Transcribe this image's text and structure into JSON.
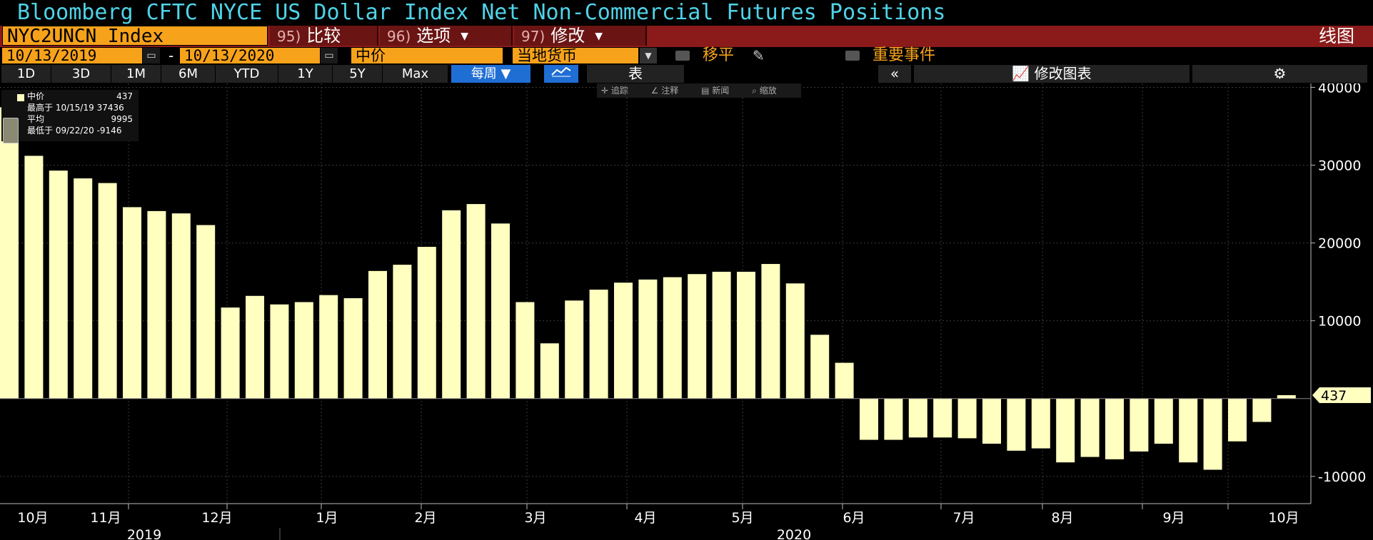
{
  "title": "Bloomberg CFTC NYCE US Dollar Index Net Non-Commercial Futures Positions",
  "ticker": "NYC2UNCN Index",
  "menu": [
    {
      "num": "95)",
      "label": "比较",
      "caret": "▼"
    },
    {
      "num": "96)",
      "label": "选项",
      "caret": "▼"
    },
    {
      "num": "97)",
      "label": "修改",
      "caret": "▼"
    }
  ],
  "view_label": "线图",
  "date_start": "10/13/2019",
  "date_sep": "-",
  "date_end": "10/13/2020",
  "price_field": "中价",
  "currency_field": "当地货币",
  "checkbox_shift": "移平",
  "checkbox_events": "重要事件",
  "periods": [
    "1D",
    "3D",
    "1M",
    "6M",
    "YTD",
    "1Y",
    "5Y",
    "Max"
  ],
  "frequency": "每周",
  "table_label": "表",
  "collapse_label": "«",
  "edit_chart_label": "修改图表",
  "mini_toolbar": [
    "追踪",
    "注释",
    "新闻",
    "缩放"
  ],
  "legend": {
    "series_label": "中价",
    "series_value": "437",
    "high_label": "最高于",
    "high_date": "10/15/19",
    "high_value": "37436",
    "avg_label": "平均",
    "avg_value": "9995",
    "low_label": "最低于",
    "low_date": "09/22/20",
    "low_value": "-9146"
  },
  "colors": {
    "bar": "#ffffc0",
    "title": "#4fd3e8",
    "ticker_bg": "#f7a21b",
    "menu_bar": "#8b1a1a",
    "active_btn": "#1f6ed4"
  },
  "chart_data": {
    "type": "bar",
    "title": "Bloomberg CFTC NYCE US Dollar Index Net Non-Commercial Futures Positions",
    "ylim": [
      -13500,
      40500
    ],
    "y_ticks": [
      40000,
      30000,
      20000,
      10000,
      -10000
    ],
    "y_tick_labels": [
      "40000",
      "30000",
      "20000",
      "10000",
      "-10000"
    ],
    "last_value_label": "437",
    "grid": true,
    "month_labels": [
      "10月",
      "11月",
      "12月",
      "1月",
      "2月",
      "3月",
      "4月",
      "5月",
      "6月",
      "7月",
      "8月",
      "9月",
      "10月"
    ],
    "year_labels": [
      "2019",
      "2020"
    ],
    "series": [
      {
        "values": [
          37436,
          31200,
          29300,
          28300,
          27700,
          24600,
          24100,
          23800,
          22300,
          11700,
          13200,
          12100,
          12400,
          13300,
          12900,
          16400,
          17200,
          19500,
          24200,
          25000,
          22500,
          12400,
          7100,
          12600,
          14000,
          14900,
          15300,
          15600,
          16000,
          16300,
          16300,
          17300,
          14800,
          8200,
          4600,
          -5300,
          -5300,
          -5000,
          -5000,
          -5100,
          -5800,
          -6700,
          -6400,
          -8200,
          -7500,
          -7800,
          -6800,
          -5800,
          -8200,
          -9146,
          -5500,
          -3000,
          437
        ]
      }
    ]
  }
}
